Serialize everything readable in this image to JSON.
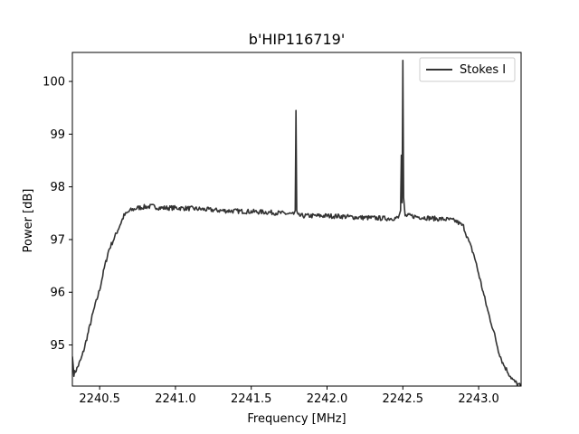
{
  "chart_data": {
    "type": "line",
    "title": "b'HIP116719'",
    "xlabel": "Frequency [MHz]",
    "ylabel": "Power [dB]",
    "xlim": [
      2240.32,
      2243.28
    ],
    "ylim": [
      94.22,
      100.55
    ],
    "xticks": [
      2240.5,
      2241.0,
      2241.5,
      2242.0,
      2242.5,
      2243.0
    ],
    "xtick_labels": [
      "2240.5",
      "2241.0",
      "2241.5",
      "2242.0",
      "2242.5",
      "2243.0"
    ],
    "yticks": [
      95,
      96,
      97,
      98,
      99,
      100
    ],
    "ytick_labels": [
      "95",
      "96",
      "97",
      "98",
      "99",
      "100"
    ],
    "grid": false,
    "legend": {
      "placement": "top-right",
      "entries": [
        "Stokes I"
      ]
    },
    "series": [
      {
        "name": "Stokes I",
        "color": "#333333",
        "points": [
          [
            2240.32,
            94.78
          ],
          [
            2240.33,
            94.45
          ],
          [
            2240.35,
            94.55
          ],
          [
            2240.38,
            94.75
          ],
          [
            2240.4,
            94.95
          ],
          [
            2240.43,
            95.3
          ],
          [
            2240.46,
            95.65
          ],
          [
            2240.5,
            96.05
          ],
          [
            2240.53,
            96.45
          ],
          [
            2240.56,
            96.8
          ],
          [
            2240.6,
            97.05
          ],
          [
            2240.63,
            97.25
          ],
          [
            2240.66,
            97.45
          ],
          [
            2240.7,
            97.55
          ],
          [
            2240.75,
            97.6
          ],
          [
            2240.8,
            97.62
          ],
          [
            2240.85,
            97.63
          ],
          [
            2240.9,
            97.6
          ],
          [
            2241.0,
            97.6
          ],
          [
            2241.1,
            97.59
          ],
          [
            2241.2,
            97.57
          ],
          [
            2241.3,
            97.55
          ],
          [
            2241.4,
            97.54
          ],
          [
            2241.5,
            97.53
          ],
          [
            2241.6,
            97.52
          ],
          [
            2241.7,
            97.5
          ],
          [
            2241.78,
            97.48
          ],
          [
            2241.79,
            97.55
          ],
          [
            2241.795,
            99.45
          ],
          [
            2241.8,
            97.55
          ],
          [
            2241.81,
            97.45
          ],
          [
            2241.9,
            97.45
          ],
          [
            2242.0,
            97.45
          ],
          [
            2242.1,
            97.44
          ],
          [
            2242.2,
            97.42
          ],
          [
            2242.3,
            97.41
          ],
          [
            2242.4,
            97.4
          ],
          [
            2242.47,
            97.41
          ],
          [
            2242.485,
            97.55
          ],
          [
            2242.49,
            98.6
          ],
          [
            2242.495,
            97.7
          ],
          [
            2242.5,
            100.4
          ],
          [
            2242.505,
            97.8
          ],
          [
            2242.515,
            97.45
          ],
          [
            2242.55,
            97.45
          ],
          [
            2242.6,
            97.43
          ],
          [
            2242.7,
            97.4
          ],
          [
            2242.8,
            97.38
          ],
          [
            2242.85,
            97.35
          ],
          [
            2242.9,
            97.25
          ],
          [
            2242.93,
            97.0
          ],
          [
            2242.97,
            96.7
          ],
          [
            2243.0,
            96.35
          ],
          [
            2243.03,
            96.0
          ],
          [
            2243.06,
            95.65
          ],
          [
            2243.1,
            95.25
          ],
          [
            2243.13,
            94.9
          ],
          [
            2243.16,
            94.65
          ],
          [
            2243.2,
            94.45
          ],
          [
            2243.23,
            94.32
          ],
          [
            2243.26,
            94.25
          ],
          [
            2243.28,
            94.22
          ]
        ]
      }
    ]
  }
}
